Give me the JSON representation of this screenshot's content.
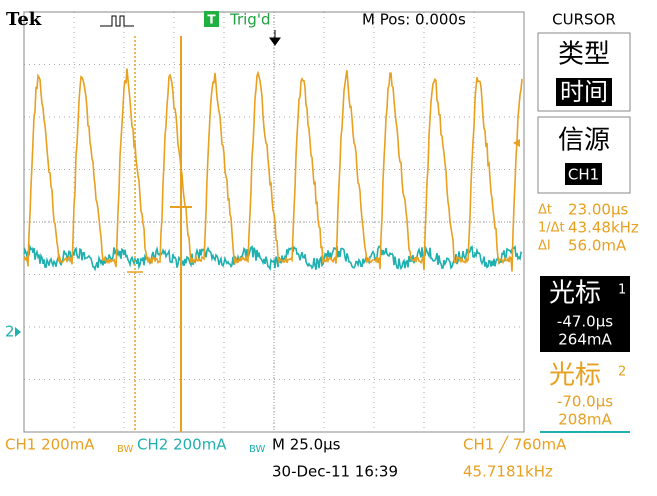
{
  "header": {
    "brand": "Tek",
    "trigger_icon": "T",
    "trigger_status": "Trig'd",
    "position": "M Pos: 0.000s",
    "menu": "CURSOR"
  },
  "menu": {
    "type_title": "类型",
    "type_value": "时间",
    "source_title": "信源",
    "source_value": "CH1",
    "readouts": [
      {
        "label": "Δt",
        "value": "23.00µs"
      },
      {
        "label": "1/Δt",
        "value": "43.48kHz"
      },
      {
        "label": "ΔI",
        "value": "56.0mA"
      }
    ],
    "cursor1": {
      "title": "光标",
      "index": "1",
      "time": "-47.0µs",
      "value": "264mA"
    },
    "cursor2": {
      "title": "光标",
      "index": "2",
      "time": "-70.0µs",
      "value": "208mA"
    }
  },
  "markers": {
    "ch2": "2"
  },
  "footer": {
    "ch1_scale": "CH1  200mA",
    "ch1_bw": "BW",
    "ch2_scale": "CH2  200mA",
    "ch2_bw": "BW",
    "timebase": "M 25.0µs",
    "trigger": "CH1 ╱ 760mA",
    "date": "30-Dec-11 16:39",
    "frequency": "45.7181kHz"
  }
}
